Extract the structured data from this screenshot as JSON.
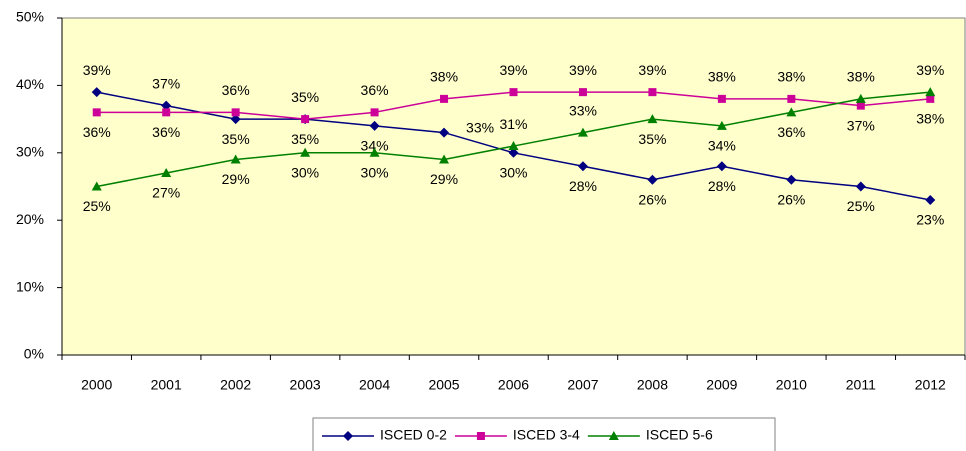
{
  "chart_data": {
    "type": "line",
    "categories": [
      "2000",
      "2001",
      "2002",
      "2003",
      "2004",
      "2005",
      "2006",
      "2007",
      "2008",
      "2009",
      "2010",
      "2011",
      "2012"
    ],
    "series": [
      {
        "name": "ISCED 0-2",
        "color": "#000080",
        "marker": "diamond",
        "values": [
          39,
          37,
          35,
          35,
          34,
          33,
          30,
          28,
          26,
          28,
          26,
          25,
          23
        ],
        "value_labels": [
          "39%",
          "37%",
          "35%",
          "35%",
          "34%",
          "33%",
          "30%",
          "28%",
          "26%",
          "28%",
          "26%",
          "25%",
          "23%"
        ]
      },
      {
        "name": "ISCED 3-4",
        "color": "#cc0099",
        "marker": "square",
        "values": [
          36,
          36,
          36,
          35,
          36,
          38,
          39,
          39,
          39,
          38,
          38,
          37,
          38
        ],
        "value_labels": [
          "36%",
          "36%",
          "36%",
          "35%",
          "36%",
          "38%",
          "39%",
          "39%",
          "39%",
          "38%",
          "38%",
          "37%",
          "38%"
        ]
      },
      {
        "name": "ISCED 5-6",
        "color": "#008000",
        "marker": "triangle",
        "values": [
          25,
          27,
          29,
          30,
          30,
          29,
          31,
          33,
          35,
          34,
          36,
          38,
          39
        ],
        "value_labels": [
          "25%",
          "27%",
          "29%",
          "30%",
          "30%",
          "29%",
          "31%",
          "33%",
          "35%",
          "34%",
          "36%",
          "38%",
          "39%"
        ]
      }
    ],
    "ylim": [
      0,
      50
    ],
    "yticks": [
      {
        "value": 0,
        "label": "0%"
      },
      {
        "value": 10,
        "label": "10%"
      },
      {
        "value": 20,
        "label": "20%"
      },
      {
        "value": 30,
        "label": "30%"
      },
      {
        "value": 40,
        "label": "40%"
      },
      {
        "value": 50,
        "label": "50%"
      }
    ],
    "plot_background": "#ffffcc"
  }
}
